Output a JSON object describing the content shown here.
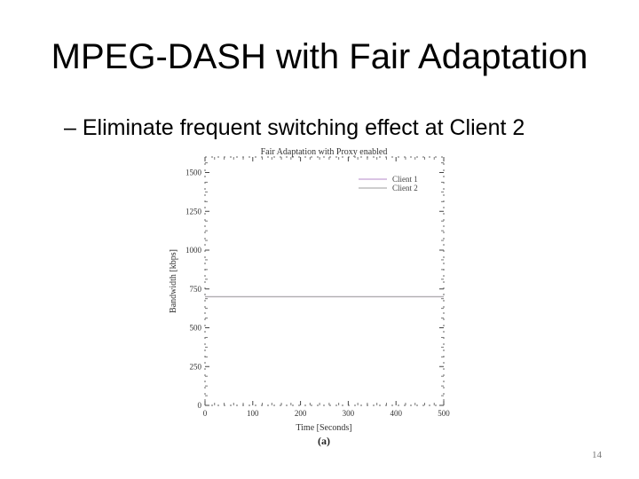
{
  "slide": {
    "title": "MPEG-DASH with Fair Adaptation",
    "bullet": "– Eliminate frequent switching effect at Client 2",
    "page_number": "14"
  },
  "chart_data": {
    "type": "line",
    "title": "Fair Adaptation with Proxy enabled",
    "xlabel": "Time [Seconds]",
    "ylabel": "Bandwidth [kbps]",
    "caption": "(a)",
    "xlim": [
      0,
      500
    ],
    "ylim": [
      0,
      1600
    ],
    "xticks": [
      0,
      100,
      200,
      300,
      400,
      500
    ],
    "yticks": [
      0,
      250,
      500,
      750,
      1000,
      1250,
      1500
    ],
    "legend_position": "top-right",
    "series": [
      {
        "name": "Client 1",
        "color": "#c4a0d4",
        "x": [
          0,
          500
        ],
        "y": [
          700,
          700
        ]
      },
      {
        "name": "Client 2",
        "color": "#b0b0b0",
        "x": [
          0,
          500
        ],
        "y": [
          700,
          700
        ]
      }
    ]
  }
}
